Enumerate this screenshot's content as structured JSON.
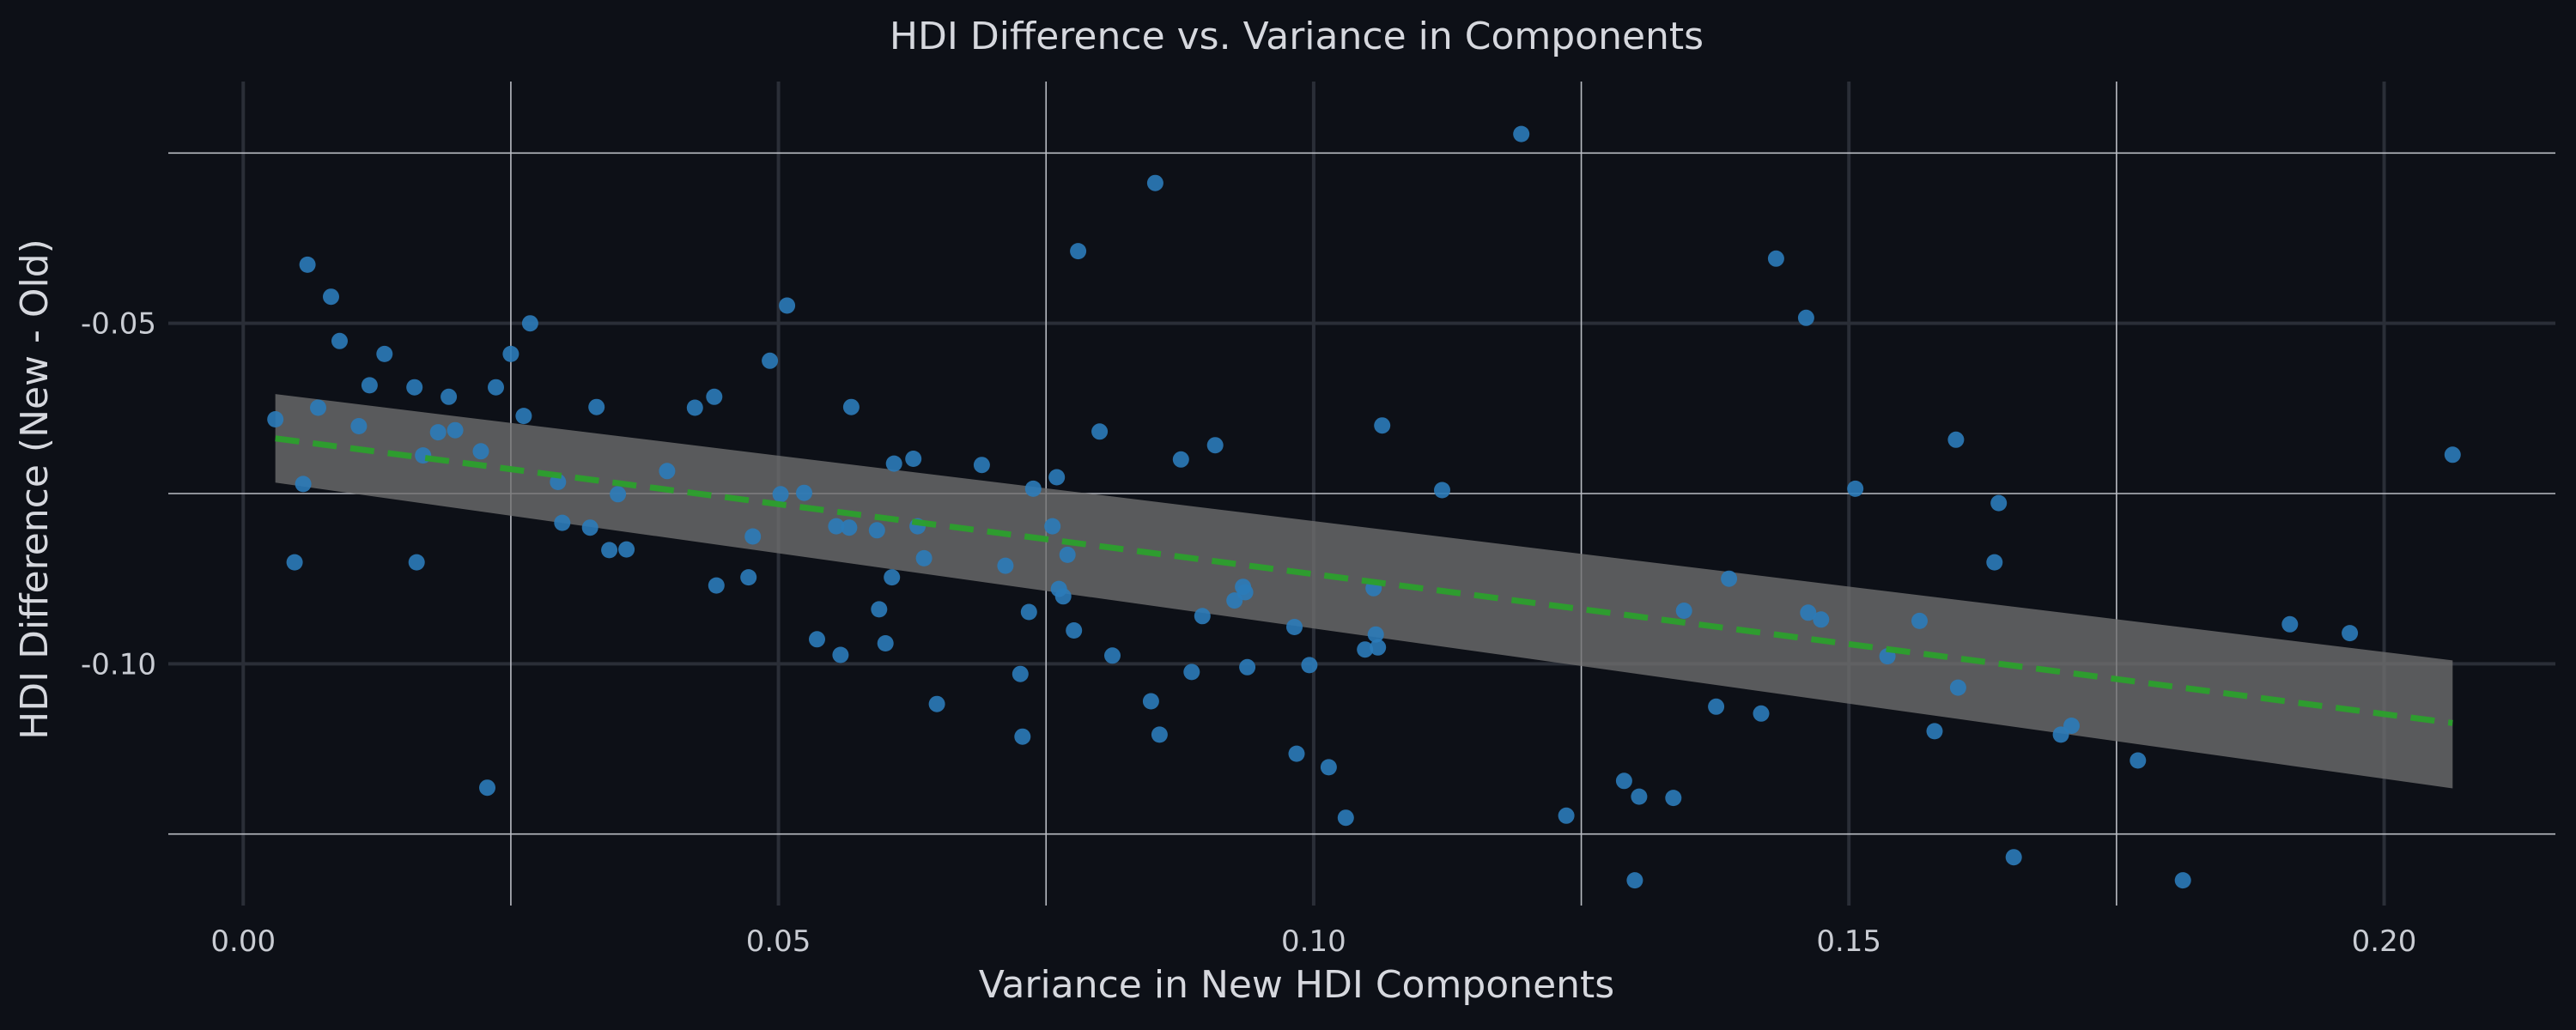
{
  "chart_data": {
    "type": "scatter",
    "title": "HDI Difference vs. Variance in Components",
    "xlabel": "Variance in New HDI Components",
    "ylabel": "HDI Difference (New - Old)",
    "xlim": [
      -0.007,
      0.216
    ],
    "ylim": [
      -0.1355,
      -0.0145
    ],
    "xticks": [
      0.0,
      0.05,
      0.1,
      0.15,
      0.2
    ],
    "xtick_labels": [
      "0.00",
      "0.05",
      "0.10",
      "0.15",
      "0.20"
    ],
    "yticks": [
      -0.05,
      -0.1
    ],
    "ytick_labels": [
      "-0.05",
      "-0.10"
    ],
    "minor_xticks": [
      0.025,
      0.075,
      0.125,
      0.175
    ],
    "minor_yticks": [
      -0.025,
      -0.075,
      -0.125
    ],
    "grid": true,
    "colors": {
      "points": "#2b7bb9",
      "trend": "#2ca02c",
      "band": "#6f6f6f",
      "background": "#0d1017"
    },
    "points": [
      [
        0.003,
        -0.0641
      ],
      [
        0.0048,
        -0.0851
      ],
      [
        0.0056,
        -0.0736
      ],
      [
        0.006,
        -0.0414
      ],
      [
        0.007,
        -0.0624
      ],
      [
        0.0082,
        -0.0461
      ],
      [
        0.009,
        -0.0526
      ],
      [
        0.0108,
        -0.0651
      ],
      [
        0.0118,
        -0.0591
      ],
      [
        0.0132,
        -0.0545
      ],
      [
        0.016,
        -0.0594
      ],
      [
        0.0162,
        -0.0851
      ],
      [
        0.0168,
        -0.0694
      ],
      [
        0.0182,
        -0.066
      ],
      [
        0.0192,
        -0.0608
      ],
      [
        0.0198,
        -0.0657
      ],
      [
        0.0222,
        -0.0688
      ],
      [
        0.0228,
        -0.1182
      ],
      [
        0.0236,
        -0.0594
      ],
      [
        0.025,
        -0.0545
      ],
      [
        0.0262,
        -0.0636
      ],
      [
        0.0268,
        -0.05
      ],
      [
        0.0294,
        -0.0733
      ],
      [
        0.0298,
        -0.0793
      ],
      [
        0.0324,
        -0.08
      ],
      [
        0.033,
        -0.0623
      ],
      [
        0.0342,
        -0.0833
      ],
      [
        0.035,
        -0.0751
      ],
      [
        0.0358,
        -0.0832
      ],
      [
        0.0396,
        -0.0717
      ],
      [
        0.0422,
        -0.0624
      ],
      [
        0.044,
        -0.0608
      ],
      [
        0.0442,
        -0.0885
      ],
      [
        0.0472,
        -0.0873
      ],
      [
        0.0476,
        -0.0813
      ],
      [
        0.0492,
        -0.0555
      ],
      [
        0.0502,
        -0.0751
      ],
      [
        0.0508,
        -0.0474
      ],
      [
        0.0524,
        -0.0749
      ],
      [
        0.0536,
        -0.0964
      ],
      [
        0.0554,
        -0.0798
      ],
      [
        0.0558,
        -0.0987
      ],
      [
        0.0566,
        -0.08
      ],
      [
        0.0568,
        -0.0623
      ],
      [
        0.0592,
        -0.0804
      ],
      [
        0.0594,
        -0.092
      ],
      [
        0.06,
        -0.097
      ],
      [
        0.0606,
        -0.0873
      ],
      [
        0.0608,
        -0.0706
      ],
      [
        0.0626,
        -0.0699
      ],
      [
        0.063,
        -0.0798
      ],
      [
        0.0636,
        -0.0845
      ],
      [
        0.0648,
        -0.1059
      ],
      [
        0.069,
        -0.0708
      ],
      [
        0.0712,
        -0.0856
      ],
      [
        0.0726,
        -0.1015
      ],
      [
        0.0728,
        -0.1107
      ],
      [
        0.0734,
        -0.0924
      ],
      [
        0.0738,
        -0.0743
      ],
      [
        0.0756,
        -0.0798
      ],
      [
        0.076,
        -0.0726
      ],
      [
        0.0762,
        -0.089
      ],
      [
        0.0766,
        -0.0901
      ],
      [
        0.077,
        -0.084
      ],
      [
        0.0776,
        -0.0951
      ],
      [
        0.078,
        -0.0394
      ],
      [
        0.08,
        -0.0659
      ],
      [
        0.0812,
        -0.0988
      ],
      [
        0.0848,
        -0.1055
      ],
      [
        0.0852,
        -0.0294
      ],
      [
        0.0856,
        -0.1104
      ],
      [
        0.0876,
        -0.07
      ],
      [
        0.0886,
        -0.1012
      ],
      [
        0.0896,
        -0.093
      ],
      [
        0.0908,
        -0.0679
      ],
      [
        0.0926,
        -0.0907
      ],
      [
        0.0934,
        -0.0887
      ],
      [
        0.0936,
        -0.0895
      ],
      [
        0.0938,
        -0.1005
      ],
      [
        0.0982,
        -0.0946
      ],
      [
        0.0984,
        -0.1132
      ],
      [
        0.0996,
        -0.1002
      ],
      [
        0.1014,
        -0.1152
      ],
      [
        0.103,
        -0.1226
      ],
      [
        0.1048,
        -0.0979
      ],
      [
        0.1056,
        -0.0889
      ],
      [
        0.1058,
        -0.0957
      ],
      [
        0.106,
        -0.0976
      ],
      [
        0.1064,
        -0.065
      ],
      [
        0.112,
        -0.0745
      ],
      [
        0.1194,
        -0.0222
      ],
      [
        0.1236,
        -0.1223
      ],
      [
        0.129,
        -0.1172
      ],
      [
        0.13,
        -0.1318
      ],
      [
        0.1304,
        -0.1195
      ],
      [
        0.1336,
        -0.1197
      ],
      [
        0.1346,
        -0.0922
      ],
      [
        0.1376,
        -0.1063
      ],
      [
        0.1388,
        -0.0875
      ],
      [
        0.1418,
        -0.1073
      ],
      [
        0.1432,
        -0.0405
      ],
      [
        0.146,
        -0.0492
      ],
      [
        0.1462,
        -0.0925
      ],
      [
        0.1474,
        -0.0935
      ],
      [
        0.1506,
        -0.0743
      ],
      [
        0.1536,
        -0.0989
      ],
      [
        0.1566,
        -0.0937
      ],
      [
        0.158,
        -0.1099
      ],
      [
        0.16,
        -0.0671
      ],
      [
        0.1602,
        -0.1035
      ],
      [
        0.1636,
        -0.0851
      ],
      [
        0.164,
        -0.0764
      ],
      [
        0.1654,
        -0.1284
      ],
      [
        0.1698,
        -0.1104
      ],
      [
        0.1708,
        -0.1091
      ],
      [
        0.177,
        -0.1142
      ],
      [
        0.1812,
        -0.1318
      ],
      [
        0.1912,
        -0.0942
      ],
      [
        0.1968,
        -0.0955
      ],
      [
        0.2064,
        -0.0693
      ]
    ],
    "trend_line": {
      "x": [
        0.003,
        0.2064
      ],
      "y": [
        -0.0669,
        -0.1087
      ]
    },
    "confidence_band": {
      "x": [
        0.003,
        0.2064
      ],
      "upper": [
        -0.0604,
        -0.0995
      ],
      "lower": [
        -0.0734,
        -0.1183
      ]
    }
  }
}
